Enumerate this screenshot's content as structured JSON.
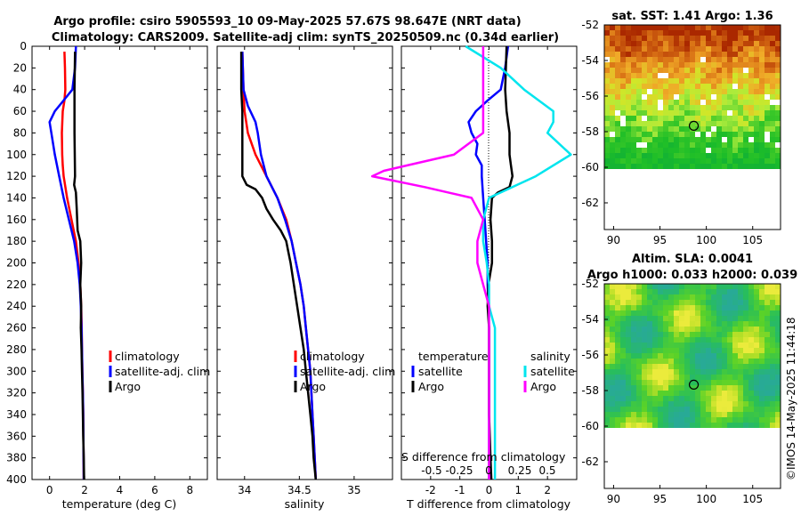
{
  "title_line1": "Argo profile: csiro 5905593_10 09-May-2025 57.67S 98.647E (NRT data)",
  "title_line2": "Climatology: CARS2009. Satellite-adj clim: synTS_20250509.nc (0.34d earlier)",
  "copyright": "©IMOS 14-May-2025 11:44:18",
  "colors": {
    "climatology": "#ff0000",
    "satellite": "#0000ff",
    "argo": "#000000",
    "s_sat": "#00e5ee",
    "s_argo": "#ff00ff"
  },
  "chart_data": [
    {
      "type": "line",
      "id": "temperature",
      "xlabel": "temperature (deg C)",
      "xlim": [
        -1,
        9
      ],
      "xticks": [
        "0",
        "2",
        "4",
        "6",
        "8"
      ],
      "xtick_values": [
        0,
        2,
        4,
        6,
        8
      ],
      "ylim": [
        0,
        400
      ],
      "yticks": [
        "0",
        "20",
        "40",
        "60",
        "80",
        "100",
        "120",
        "140",
        "160",
        "180",
        "200",
        "220",
        "240",
        "260",
        "280",
        "300",
        "320",
        "340",
        "360",
        "380",
        "400"
      ],
      "legend": [
        "climatology",
        "satellite-adj. clim",
        "Argo"
      ],
      "series": [
        {
          "name": "climatology",
          "color": "#ff0000",
          "depth": [
            5,
            20,
            40,
            50,
            60,
            80,
            100,
            110,
            120,
            140,
            160,
            180,
            200,
            220,
            240,
            260,
            280,
            300,
            320,
            340,
            360,
            380,
            400
          ],
          "values": [
            0.85,
            0.88,
            0.9,
            0.85,
            0.75,
            0.7,
            0.72,
            0.75,
            0.8,
            1.0,
            1.25,
            1.5,
            1.65,
            1.75,
            1.8,
            1.83,
            1.85,
            1.87,
            1.9,
            1.92,
            1.93,
            1.94,
            1.95
          ]
        },
        {
          "name": "satellite-adj. clim",
          "color": "#0000ff",
          "depth": [
            0,
            20,
            40,
            50,
            60,
            70,
            80,
            100,
            120,
            140,
            160,
            180,
            200,
            220,
            240,
            260,
            280,
            300,
            320,
            340,
            360,
            380,
            400
          ],
          "values": [
            1.5,
            1.45,
            1.3,
            0.8,
            0.3,
            0.0,
            0.1,
            0.3,
            0.55,
            0.8,
            1.1,
            1.4,
            1.6,
            1.72,
            1.78,
            1.82,
            1.85,
            1.87,
            1.9,
            1.92,
            1.93,
            1.94,
            1.95
          ]
        },
        {
          "name": "Argo",
          "color": "#000000",
          "depth": [
            5,
            40,
            80,
            120,
            128,
            135,
            150,
            170,
            180,
            200,
            220,
            240,
            260,
            280,
            300,
            320,
            340,
            360,
            380,
            400
          ],
          "values": [
            1.45,
            1.42,
            1.42,
            1.45,
            1.4,
            1.5,
            1.55,
            1.6,
            1.75,
            1.8,
            1.75,
            1.8,
            1.78,
            1.82,
            1.85,
            1.88,
            1.9,
            1.92,
            1.95,
            1.97
          ]
        }
      ]
    },
    {
      "type": "line",
      "id": "salinity",
      "xlabel": "salinity",
      "xlim": [
        33.75,
        35.35
      ],
      "xticks": [
        "34",
        "34.5",
        "35"
      ],
      "xtick_values": [
        34,
        34.5,
        35
      ],
      "ylim": [
        0,
        400
      ],
      "legend": [
        "climatology",
        "satellite-adj. clim",
        "Argo"
      ],
      "series": [
        {
          "name": "climatology",
          "color": "#ff0000",
          "depth": [
            5,
            40,
            60,
            80,
            100,
            120,
            140,
            160,
            180,
            200,
            220,
            240,
            260,
            280,
            300,
            320,
            340,
            360,
            380,
            400
          ],
          "values": [
            33.98,
            33.99,
            34.0,
            34.03,
            34.1,
            34.2,
            34.3,
            34.38,
            34.43,
            34.47,
            34.51,
            34.54,
            34.56,
            34.58,
            34.6,
            34.61,
            34.62,
            34.63,
            34.64,
            34.65
          ]
        },
        {
          "name": "satellite-adj. clim",
          "color": "#0000ff",
          "depth": [
            5,
            40,
            55,
            70,
            80,
            100,
            120,
            140,
            160,
            180,
            200,
            220,
            240,
            260,
            280,
            300,
            320,
            340,
            360,
            380,
            400
          ],
          "values": [
            33.98,
            33.99,
            34.03,
            34.1,
            34.12,
            34.15,
            34.2,
            34.3,
            34.37,
            34.43,
            34.47,
            34.51,
            34.54,
            34.56,
            34.58,
            34.6,
            34.61,
            34.62,
            34.63,
            34.64,
            34.65
          ]
        },
        {
          "name": "Argo",
          "color": "#000000",
          "depth": [
            5,
            40,
            60,
            80,
            100,
            120,
            128,
            132,
            140,
            150,
            160,
            170,
            180,
            190,
            200,
            220,
            240,
            260,
            280,
            300,
            320,
            340,
            360,
            380,
            400
          ],
          "values": [
            33.97,
            33.97,
            33.98,
            33.98,
            33.98,
            33.98,
            34.02,
            34.1,
            34.16,
            34.2,
            34.26,
            34.33,
            34.38,
            34.4,
            34.42,
            34.45,
            34.48,
            34.51,
            34.54,
            34.56,
            34.58,
            34.6,
            34.62,
            34.63,
            34.65
          ]
        }
      ]
    },
    {
      "type": "line",
      "id": "difference",
      "xlabel": "T difference from climatology",
      "xlabel_top": "S difference from climatology",
      "xlim": [
        -3,
        3
      ],
      "xticks": [
        "-2",
        "-1",
        "0",
        "1",
        "2"
      ],
      "xtick_values": [
        -2,
        -1,
        0,
        1,
        2
      ],
      "sticks": [
        "-0.5",
        "-0.25",
        "0",
        "0.25",
        "0.5"
      ],
      "legend_temperature_title": "temperature",
      "legend_salinity_title": "salinity",
      "legend": [
        "satellite",
        "Argo",
        "satellite",
        "Argo"
      ],
      "series": [
        {
          "name": "T satellite",
          "color": "#0000ff",
          "depth": [
            0,
            20,
            40,
            50,
            60,
            70,
            80,
            90,
            100,
            110,
            120,
            140,
            160,
            180,
            200,
            220,
            240,
            260,
            280,
            300,
            320,
            340,
            360,
            380,
            400
          ],
          "values": [
            0.65,
            0.55,
            0.4,
            -0.05,
            -0.45,
            -0.7,
            -0.6,
            -0.4,
            -0.45,
            -0.25,
            -0.25,
            -0.2,
            -0.15,
            -0.1,
            -0.05,
            -0.05,
            -0.02,
            0,
            0,
            0,
            0,
            0,
            0,
            0,
            0
          ]
        },
        {
          "name": "T Argo",
          "color": "#000000",
          "depth": [
            0,
            40,
            60,
            80,
            100,
            110,
            120,
            130,
            135,
            140,
            160,
            180,
            200,
            220,
            240,
            260,
            300,
            340,
            380,
            400
          ],
          "values": [
            0.6,
            0.55,
            0.6,
            0.7,
            0.7,
            0.75,
            0.8,
            0.7,
            0.3,
            0.1,
            0.05,
            0.1,
            0.1,
            -0.02,
            -0.05,
            0.0,
            0.0,
            0.0,
            0.05,
            0.08
          ]
        },
        {
          "name": "S satellite",
          "color": "#00e5ee",
          "depth": [
            0,
            20,
            40,
            60,
            70,
            80,
            100,
            120,
            140,
            160,
            180,
            200,
            220,
            240,
            260,
            280,
            300,
            320,
            340,
            360,
            380,
            400
          ],
          "values": [
            -0.2,
            0.1,
            0.3,
            0.55,
            0.55,
            0.5,
            0.7,
            0.4,
            0.0,
            -0.05,
            -0.05,
            -0.02,
            0.0,
            0.0,
            0.05,
            0.05,
            0.05,
            0.05,
            0.05,
            0.05,
            0.05,
            0.05
          ]
        },
        {
          "name": "S Argo",
          "color": "#ff00ff",
          "depth": [
            0,
            20,
            40,
            60,
            80,
            100,
            110,
            115,
            120,
            130,
            140,
            160,
            180,
            200,
            220,
            240,
            260,
            280,
            300,
            320,
            340,
            360,
            380,
            400
          ],
          "values": [
            -0.05,
            -0.05,
            -0.05,
            -0.05,
            -0.05,
            -0.3,
            -0.7,
            -0.9,
            -1.0,
            -0.55,
            -0.15,
            -0.05,
            -0.1,
            -0.1,
            -0.05,
            0.0,
            0.0,
            0.0,
            0.0,
            0.0,
            0.0,
            0.0,
            0.0,
            0.0
          ]
        }
      ]
    },
    {
      "type": "heatmap",
      "id": "sst",
      "title": "sat. SST: 1.41 Argo: 1.36",
      "xticks": [
        "90",
        "95",
        "100",
        "105"
      ],
      "yticks": [
        "-52",
        "-54",
        "-56",
        "-58",
        "-60",
        "-62"
      ],
      "xlim": [
        89,
        108
      ],
      "ylim": [
        -63.5,
        -52
      ],
      "marker": [
        98.647,
        -57.67
      ]
    },
    {
      "type": "heatmap",
      "id": "sla",
      "title_line1": "Altim. SLA: 0.0041",
      "title_line2": "Argo h1000: 0.033 h2000: 0.039",
      "xticks": [
        "90",
        "95",
        "100",
        "105"
      ],
      "yticks": [
        "-52",
        "-54",
        "-56",
        "-58",
        "-60",
        "-62"
      ],
      "xlim": [
        89,
        108
      ],
      "ylim": [
        -63.5,
        -52
      ],
      "marker": [
        98.647,
        -57.67
      ]
    }
  ]
}
